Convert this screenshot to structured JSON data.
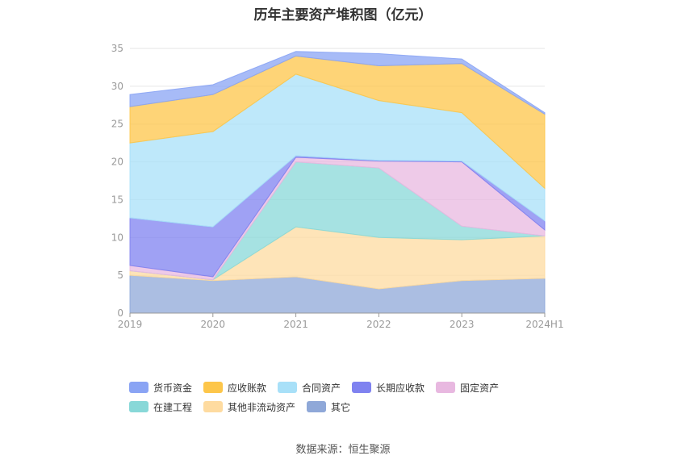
{
  "chart_data": {
    "type": "area",
    "stacked": true,
    "title": "历年主要资产堆积图（亿元）",
    "categories": [
      "2019",
      "2020",
      "2021",
      "2022",
      "2023",
      "2024H1"
    ],
    "ylim": [
      0,
      35
    ],
    "yticks": [
      0,
      5,
      10,
      15,
      20,
      25,
      30,
      35
    ],
    "grid": true,
    "legend_position": "bottom",
    "series": [
      {
        "name": "其它",
        "color": "#8fa8d8",
        "values": [
          5.0,
          4.3,
          4.8,
          3.2,
          4.3,
          4.6
        ]
      },
      {
        "name": "其他非流动资产",
        "color": "#fedba0",
        "values": [
          0.6,
          0.1,
          6.6,
          6.8,
          5.4,
          5.6
        ]
      },
      {
        "name": "在建工程",
        "color": "#88d8d8",
        "values": [
          0.0,
          0.0,
          8.6,
          9.2,
          1.8,
          0.0
        ]
      },
      {
        "name": "固定资产",
        "color": "#e8b8e0",
        "values": [
          0.7,
          0.4,
          0.6,
          0.9,
          8.5,
          0.8
        ]
      },
      {
        "name": "长期应收款",
        "color": "#7f82f0",
        "values": [
          6.3,
          6.6,
          0.2,
          0.1,
          0.1,
          1.2
        ]
      },
      {
        "name": "合同资产",
        "color": "#a8e0f8",
        "values": [
          9.9,
          12.6,
          10.8,
          7.9,
          6.4,
          4.3
        ]
      },
      {
        "name": "应收账款",
        "color": "#fdc64a",
        "values": [
          4.8,
          4.9,
          2.4,
          4.6,
          6.5,
          9.8
        ]
      },
      {
        "name": "货币资金",
        "color": "#8aa4f4",
        "values": [
          1.6,
          1.3,
          0.6,
          1.6,
          0.6,
          0.2
        ]
      }
    ]
  },
  "legend_order": [
    "货币资金",
    "应收账款",
    "合同资产",
    "长期应收款",
    "固定资产",
    "在建工程",
    "其他非流动资产",
    "其它"
  ],
  "source_text": "数据来源：恒生聚源"
}
